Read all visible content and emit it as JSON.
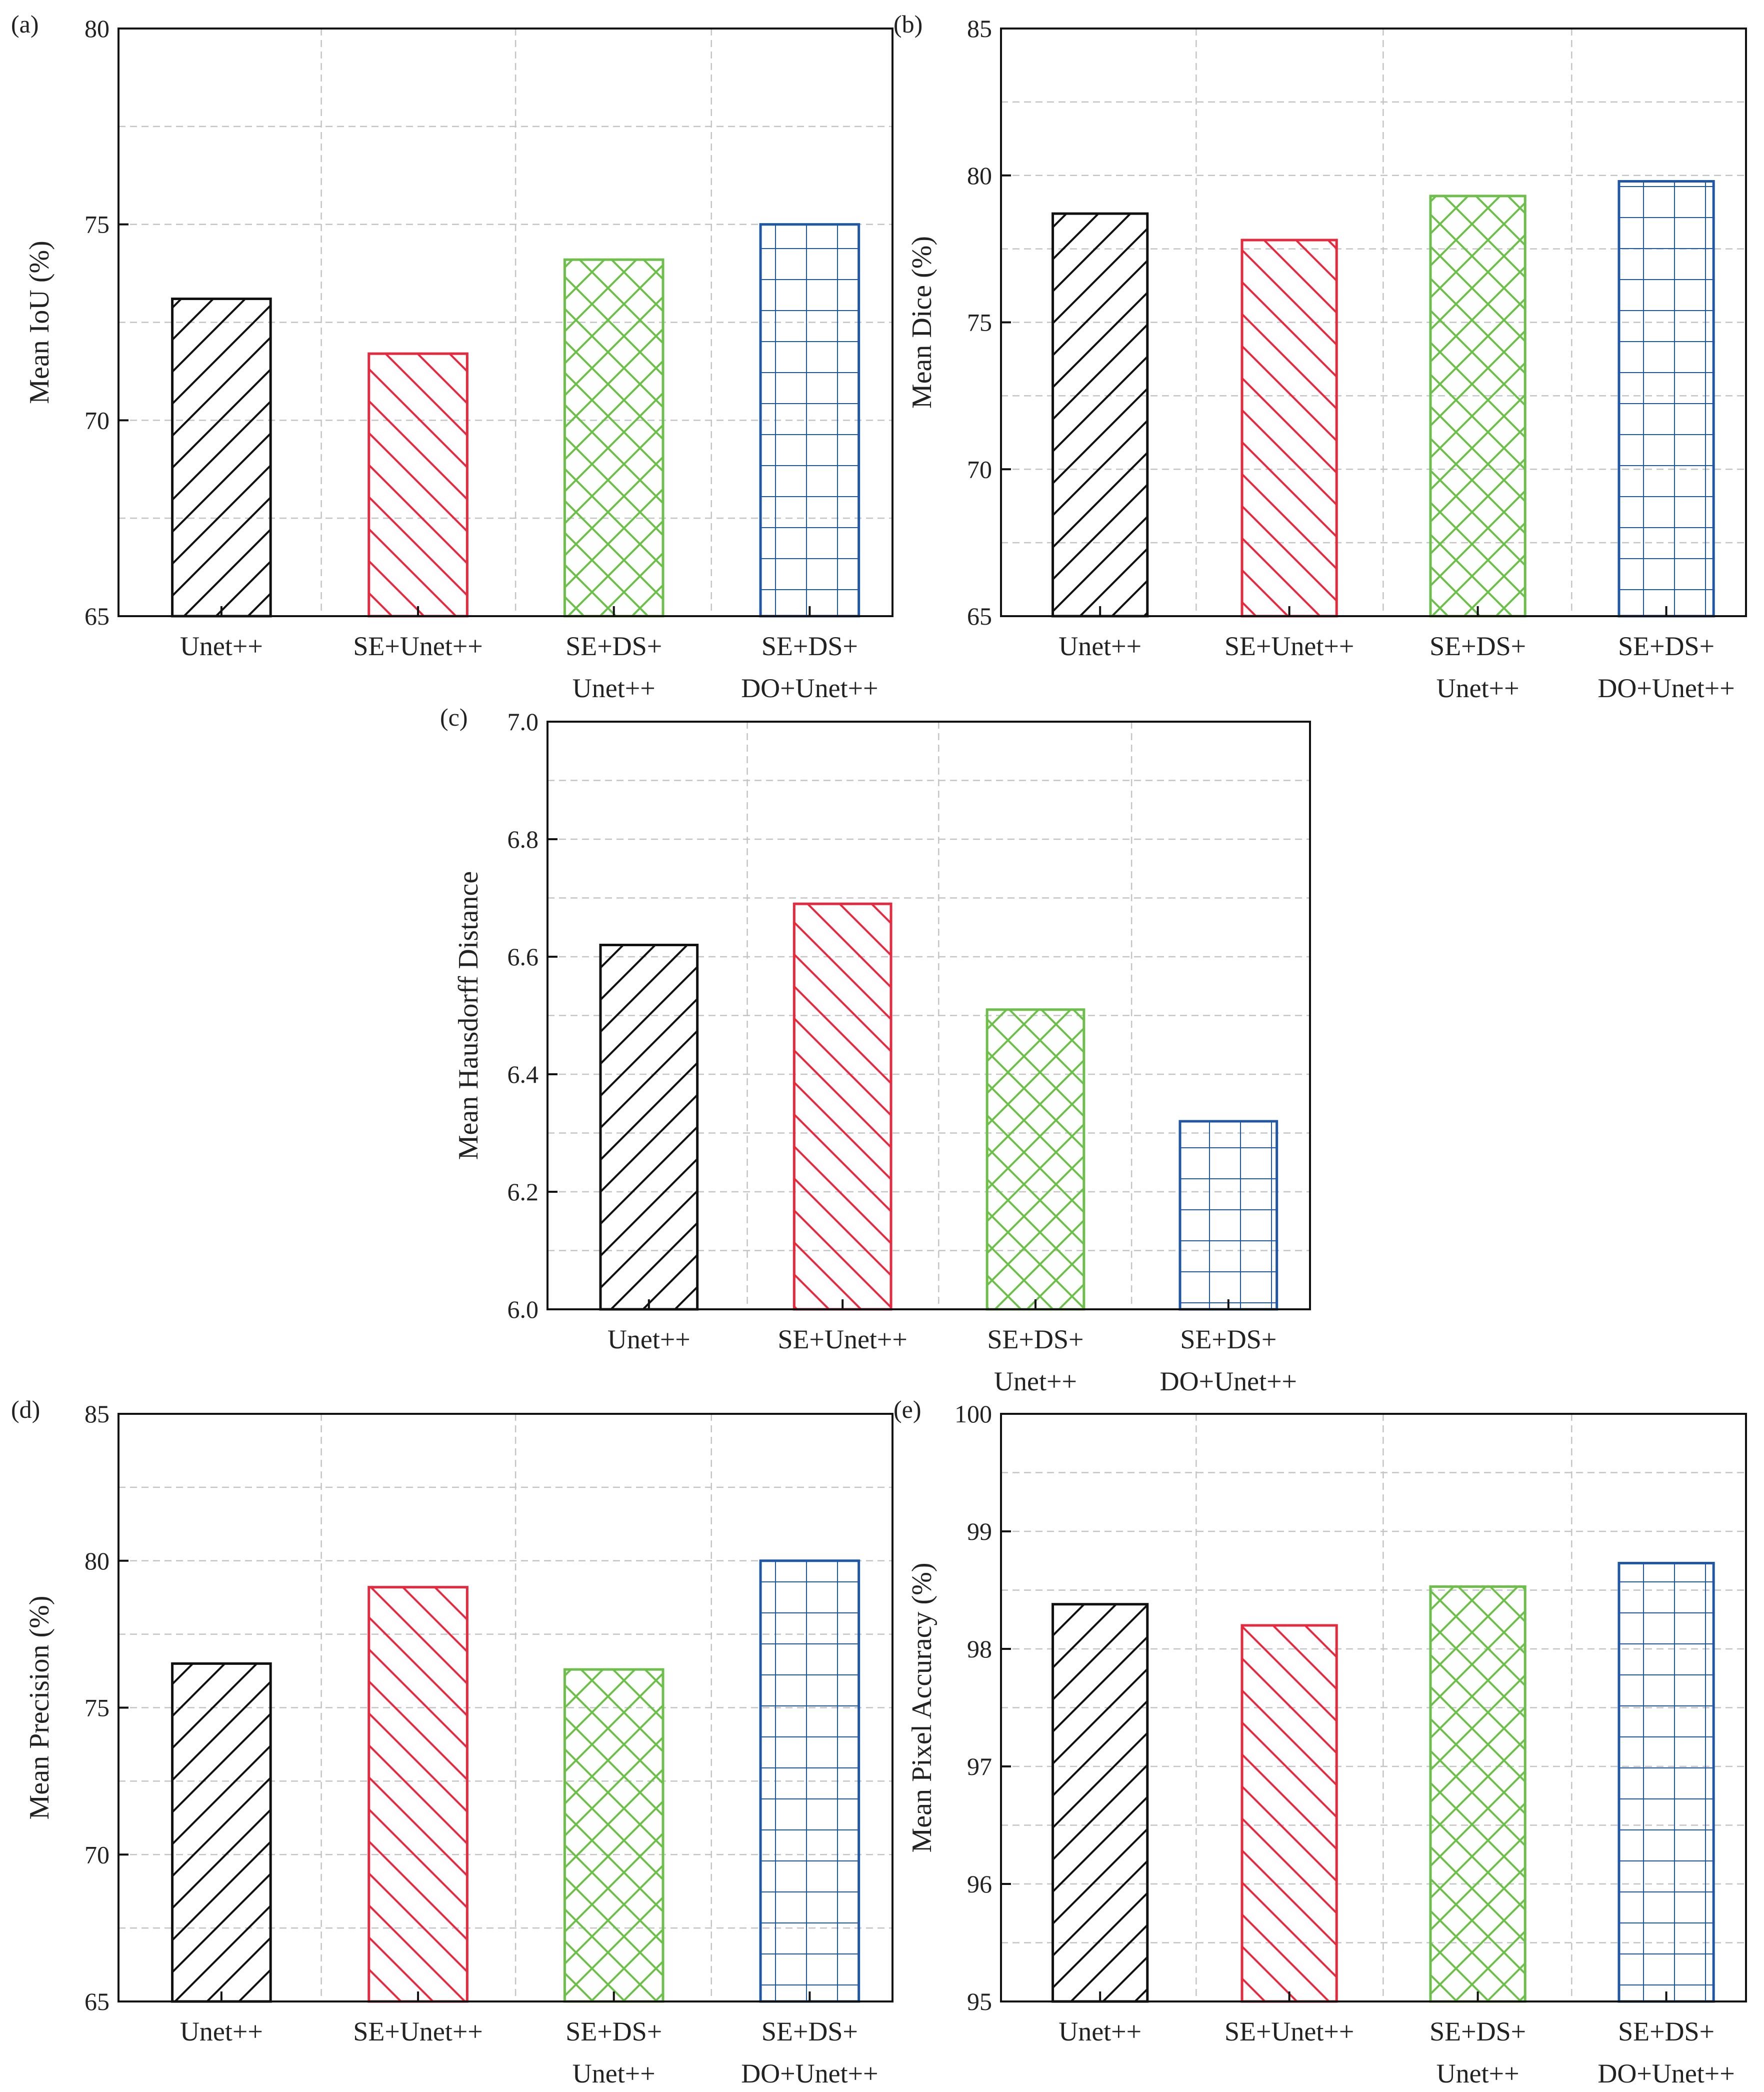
{
  "chart_data": [
    {
      "panel": "(a)",
      "type": "bar",
      "ylabel": "Mean IoU (%)",
      "ylim": [
        65,
        80
      ],
      "yticks": [
        "65",
        "70",
        "75",
        "80"
      ],
      "categories": [
        [
          "Unet++"
        ],
        [
          "SE+Unet++"
        ],
        [
          "SE+DS+",
          "Unet++"
        ],
        [
          "SE+DS+",
          "DO+Unet++"
        ]
      ],
      "values": [
        73.1,
        71.7,
        74.1,
        75.0
      ],
      "grid": true
    },
    {
      "panel": "(b)",
      "type": "bar",
      "ylabel": "Mean Dice (%)",
      "ylim": [
        65,
        85
      ],
      "yticks": [
        "65",
        "70",
        "75",
        "80",
        "85"
      ],
      "categories": [
        [
          "Unet++"
        ],
        [
          "SE+Unet++"
        ],
        [
          "SE+DS+",
          "Unet++"
        ],
        [
          "SE+DS+",
          "DO+Unet++"
        ]
      ],
      "values": [
        78.7,
        77.8,
        79.3,
        79.8
      ],
      "grid": true
    },
    {
      "panel": "(c)",
      "type": "bar",
      "ylabel": "Mean Hausdorff Distance",
      "ylim": [
        6.0,
        7.0
      ],
      "yticks": [
        "6.0",
        "6.2",
        "6.4",
        "6.6",
        "6.8",
        "7.0"
      ],
      "categories": [
        [
          "Unet++"
        ],
        [
          "SE+Unet++"
        ],
        [
          "SE+DS+",
          "Unet++"
        ],
        [
          "SE+DS+",
          "DO+Unet++"
        ]
      ],
      "values": [
        6.62,
        6.69,
        6.51,
        6.32
      ],
      "grid": true
    },
    {
      "panel": "(d)",
      "type": "bar",
      "ylabel": "Mean Precision (%)",
      "ylim": [
        65,
        85
      ],
      "yticks": [
        "65",
        "70",
        "75",
        "80",
        "85"
      ],
      "categories": [
        [
          "Unet++"
        ],
        [
          "SE+Unet++"
        ],
        [
          "SE+DS+",
          "Unet++"
        ],
        [
          "SE+DS+",
          "DO+Unet++"
        ]
      ],
      "values": [
        76.5,
        79.1,
        76.3,
        80.0
      ],
      "grid": true
    },
    {
      "panel": "(e)",
      "type": "bar",
      "ylabel": "Mean Pixel Accuracy (%)",
      "ylim": [
        95,
        100
      ],
      "yticks": [
        "95",
        "96",
        "97",
        "98",
        "99",
        "100"
      ],
      "categories": [
        [
          "Unet++"
        ],
        [
          "SE+Unet++"
        ],
        [
          "SE+DS+",
          "Unet++"
        ],
        [
          "SE+DS+",
          "DO+Unet++"
        ]
      ],
      "values": [
        98.38,
        98.2,
        98.53,
        98.73
      ],
      "grid": true
    }
  ],
  "series_style": [
    {
      "color": "#111111",
      "hatch": "forward-diagonal"
    },
    {
      "color": "#e8283c",
      "hatch": "backward-diagonal"
    },
    {
      "color": "#6cc04a",
      "hatch": "cross-diagonal"
    },
    {
      "color": "#1f57a8",
      "hatch": "grid"
    }
  ]
}
